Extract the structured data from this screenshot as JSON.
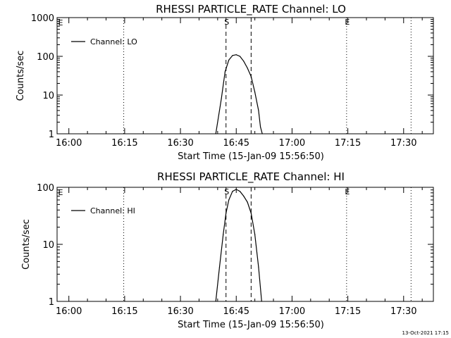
{
  "chart_data": [
    {
      "type": "line",
      "title": "RHESSI PARTICLE_RATE Channel: LO",
      "xlabel": "Start Time (15-Jan-09 15:56:50)",
      "ylabel": "Counts/sec",
      "yscale": "log",
      "xlim": [
        "15:56:50",
        "17:38:00"
      ],
      "ylim": [
        1,
        1000
      ],
      "x_ticks": [
        "16:00",
        "16:15",
        "16:30",
        "16:45",
        "17:00",
        "17:15",
        "17:30"
      ],
      "y_ticks": [
        "1",
        "10",
        "100",
        "1000"
      ],
      "legend": "top-left",
      "series": [
        {
          "name": "Channel: LO",
          "points": [
            {
              "x": "16:39:30",
              "y": 1.0
            },
            {
              "x": "16:41:00",
              "y": 8.0
            },
            {
              "x": "16:42:00",
              "y": 40.0
            },
            {
              "x": "16:43:00",
              "y": 80.0
            },
            {
              "x": "16:44:00",
              "y": 105.0
            },
            {
              "x": "16:45:00",
              "y": 110.0
            },
            {
              "x": "16:46:00",
              "y": 100.0
            },
            {
              "x": "16:47:00",
              "y": 75.0
            },
            {
              "x": "16:48:00",
              "y": 50.0
            },
            {
              "x": "16:49:00",
              "y": 30.0
            },
            {
              "x": "16:50:00",
              "y": 12.0
            },
            {
              "x": "16:51:00",
              "y": 4.0
            },
            {
              "x": "16:51:30",
              "y": 1.5
            },
            {
              "x": "16:52:00",
              "y": 1.0
            }
          ]
        }
      ],
      "markers": [
        {
          "time": "16:14:45",
          "style": "dotted",
          "label": ""
        },
        {
          "time": "16:42:15",
          "style": "dashed",
          "label": "S"
        },
        {
          "time": "16:49:00",
          "style": "dashed",
          "label": ""
        },
        {
          "time": "17:14:40",
          "style": "dotted",
          "label": "E"
        },
        {
          "time": "17:32:00",
          "style": "dotted",
          "label": ""
        }
      ],
      "left_edge_label": "E"
    },
    {
      "type": "line",
      "title": "RHESSI PARTICLE_RATE Channel: HI",
      "xlabel": "Start Time (15-Jan-09 15:56:50)",
      "ylabel": "Counts/sec",
      "yscale": "log",
      "xlim": [
        "15:56:50",
        "17:38:00"
      ],
      "ylim": [
        1,
        100
      ],
      "x_ticks": [
        "16:00",
        "16:15",
        "16:30",
        "16:45",
        "17:00",
        "17:15",
        "17:30"
      ],
      "y_ticks": [
        "1",
        "10",
        "100"
      ],
      "legend": "top-left",
      "series": [
        {
          "name": "Channel: HI",
          "points": [
            {
              "x": "16:39:30",
              "y": 1.0
            },
            {
              "x": "16:40:30",
              "y": 4.0
            },
            {
              "x": "16:41:30",
              "y": 15.0
            },
            {
              "x": "16:42:15",
              "y": 35.0
            },
            {
              "x": "16:43:00",
              "y": 60.0
            },
            {
              "x": "16:44:00",
              "y": 85.0
            },
            {
              "x": "16:45:00",
              "y": 92.0
            },
            {
              "x": "16:46:00",
              "y": 85.0
            },
            {
              "x": "16:47:00",
              "y": 70.0
            },
            {
              "x": "16:48:00",
              "y": 55.0
            },
            {
              "x": "16:49:00",
              "y": 35.0
            },
            {
              "x": "16:50:00",
              "y": 15.0
            },
            {
              "x": "16:51:00",
              "y": 4.0
            },
            {
              "x": "16:51:50",
              "y": 1.0
            }
          ]
        }
      ],
      "markers": [
        {
          "time": "16:14:45",
          "style": "dotted",
          "label": ""
        },
        {
          "time": "16:42:15",
          "style": "dashed",
          "label": "S"
        },
        {
          "time": "16:49:00",
          "style": "dashed",
          "label": ""
        },
        {
          "time": "17:14:40",
          "style": "dotted",
          "label": "E"
        },
        {
          "time": "17:32:00",
          "style": "dotted",
          "label": ""
        }
      ],
      "left_edge_label": "E"
    }
  ],
  "footer": {
    "timestamp": "13-Oct-2021 17:15"
  }
}
